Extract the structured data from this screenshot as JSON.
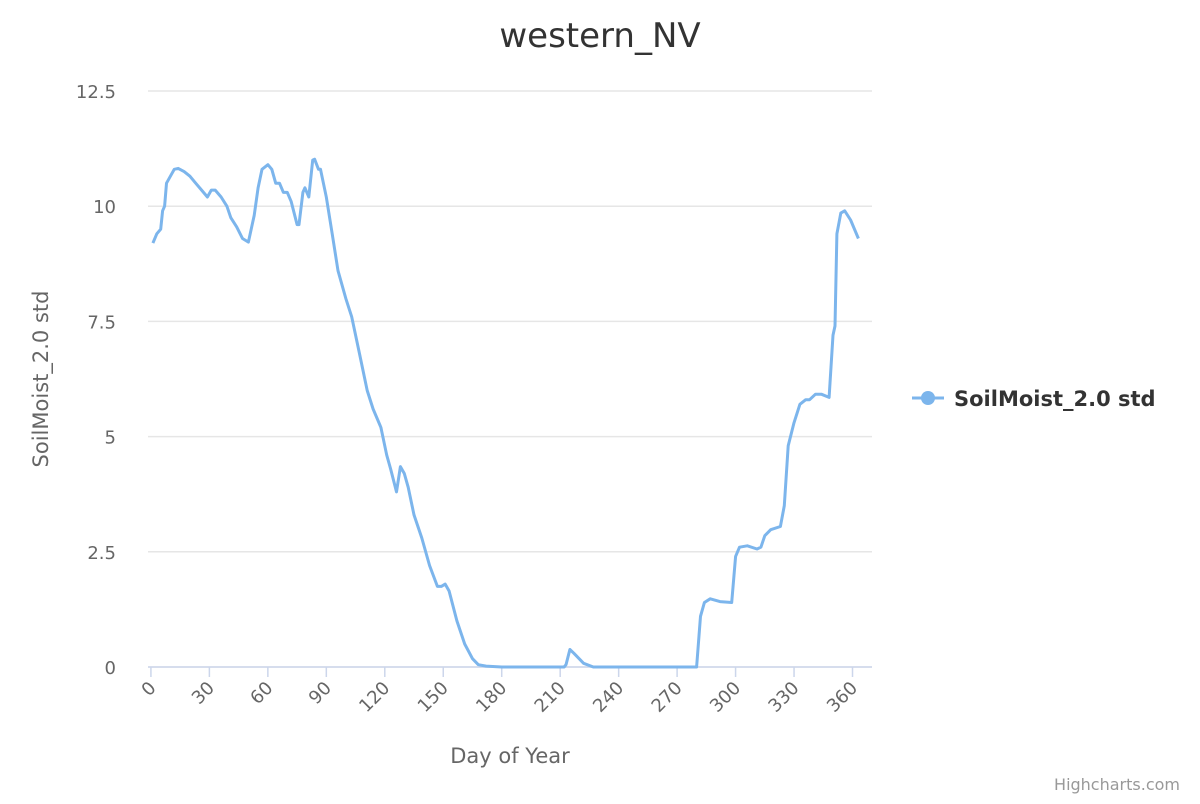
{
  "chart_data": {
    "type": "line",
    "title": "western_NV",
    "xlabel": "Day of Year",
    "ylabel": "SoilMoist_2.0 std",
    "credit": "Highcharts.com",
    "x": [
      1,
      3,
      5,
      6,
      7,
      8,
      10,
      12,
      14,
      17,
      20,
      23,
      26,
      29,
      31,
      33,
      36,
      39,
      41,
      44,
      47,
      50,
      53,
      55,
      57,
      60,
      62,
      64,
      66,
      68,
      70,
      72,
      75,
      76,
      78,
      79,
      81,
      83,
      84,
      86,
      87,
      90,
      93,
      96,
      100,
      103,
      107,
      111,
      114,
      118,
      121,
      123,
      126,
      128,
      130,
      132,
      135,
      139,
      143,
      147,
      149,
      151,
      153,
      157,
      161,
      165,
      168,
      172,
      180,
      212,
      213,
      215,
      217,
      222,
      227,
      280,
      282,
      284,
      287,
      292,
      298,
      300,
      302,
      306,
      311,
      313,
      315,
      318,
      323,
      325,
      327,
      330,
      333,
      336,
      338,
      341,
      344,
      348,
      350,
      351,
      352,
      354,
      356,
      359,
      363
    ],
    "series": [
      {
        "name": "SoilMoist_2.0 std",
        "color": "#7cb5ec",
        "values": [
          9.2,
          9.4,
          9.5,
          9.9,
          10.0,
          10.5,
          10.65,
          10.8,
          10.82,
          10.75,
          10.65,
          10.5,
          10.35,
          10.2,
          10.35,
          10.35,
          10.2,
          10.0,
          9.75,
          9.55,
          9.3,
          9.22,
          9.8,
          10.4,
          10.8,
          10.9,
          10.8,
          10.5,
          10.5,
          10.3,
          10.3,
          10.1,
          9.6,
          9.6,
          10.3,
          10.4,
          10.2,
          11.0,
          11.02,
          10.8,
          10.8,
          10.2,
          9.4,
          8.6,
          8.0,
          7.6,
          6.8,
          6.0,
          5.6,
          5.2,
          4.6,
          4.3,
          3.8,
          4.35,
          4.2,
          3.9,
          3.3,
          2.8,
          2.2,
          1.75,
          1.75,
          1.8,
          1.65,
          1.0,
          0.5,
          0.18,
          0.05,
          0.02,
          0,
          0,
          0.05,
          0.38,
          0.3,
          0.08,
          0,
          0,
          1.1,
          1.4,
          1.48,
          1.42,
          1.4,
          2.4,
          2.6,
          2.63,
          2.56,
          2.6,
          2.85,
          2.98,
          3.05,
          3.5,
          4.8,
          5.3,
          5.7,
          5.8,
          5.8,
          5.92,
          5.92,
          5.85,
          7.2,
          7.4,
          9.4,
          9.85,
          9.9,
          9.7,
          9.3
        ]
      }
    ],
    "xlim": [
      -1.5,
      370
    ],
    "xticks": [
      0,
      30,
      60,
      90,
      120,
      150,
      180,
      210,
      240,
      270,
      300,
      330,
      360
    ],
    "ylim": [
      0,
      12.5
    ],
    "yticks": [
      0,
      2.5,
      5,
      7.5,
      10,
      12.5
    ],
    "grid": true,
    "legend": "right"
  }
}
